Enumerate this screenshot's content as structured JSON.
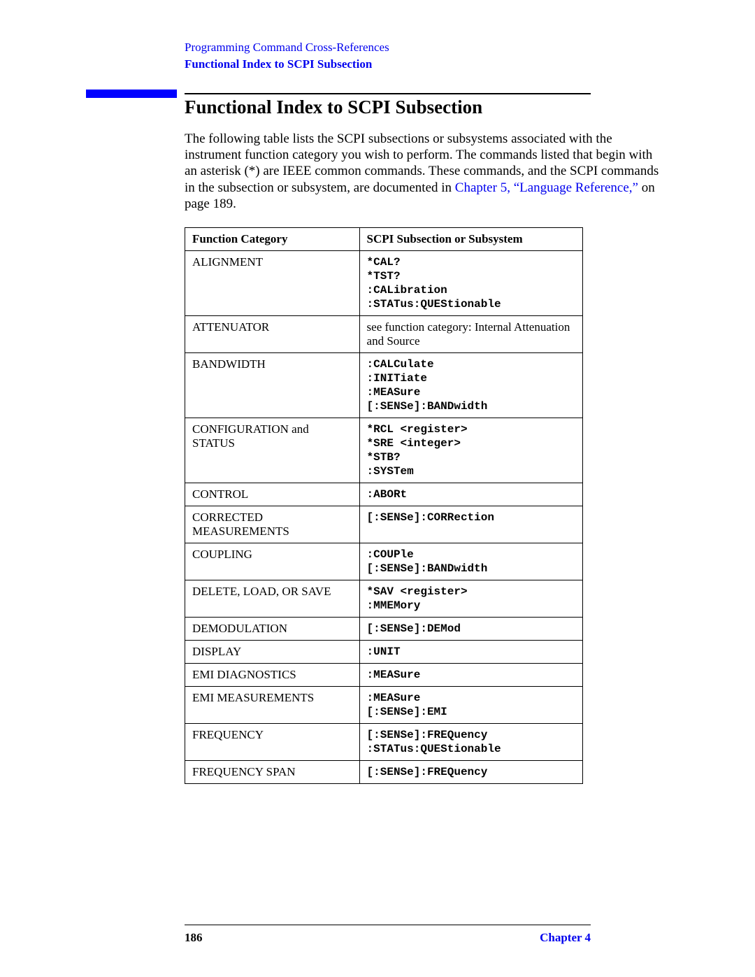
{
  "header": {
    "chapter_title": "Programming Command Cross-References",
    "section_title": "Functional Index to SCPI Subsection"
  },
  "heading": "Functional Index to SCPI Subsection",
  "intro": {
    "text_before_link": "The following table lists the SCPI subsections or subsystems associated with the instrument function category you wish to perform. The commands listed that begin with an asterisk (*) are IEEE common commands. These commands, and the SCPI commands in the subsection or subsystem, are documented in ",
    "link_text": "Chapter 5, “Language Reference,”",
    "text_after_link": " on page 189."
  },
  "table": {
    "columns": [
      "Function Category",
      "SCPI Subsection or Subsystem"
    ],
    "rows": [
      {
        "category": "ALIGNMENT",
        "scpi_mono": "*CAL?\n*TST?\n:CALibration\n:STATus:QUEStionable",
        "scpi_plain": ""
      },
      {
        "category": "ATTENUATOR",
        "scpi_mono": "",
        "scpi_plain": "see function category: Internal Attenuation and Source"
      },
      {
        "category": "BANDWIDTH",
        "scpi_mono": ":CALCulate\n:INITiate\n:MEASure\n[:SENSe]:BANDwidth",
        "scpi_plain": ""
      },
      {
        "category": "CONFIGURATION and STATUS",
        "scpi_mono": "*RCL <register>\n*SRE <integer>\n*STB?\n:SYSTem",
        "scpi_plain": ""
      },
      {
        "category": "CONTROL",
        "scpi_mono": ":ABORt",
        "scpi_plain": ""
      },
      {
        "category": "CORRECTED MEASUREMENTS",
        "scpi_mono": "[:SENSe]:CORRection",
        "scpi_plain": ""
      },
      {
        "category": "COUPLING",
        "scpi_mono": ":COUPle\n[:SENSe]:BANDwidth",
        "scpi_plain": ""
      },
      {
        "category": "DELETE, LOAD, OR SAVE",
        "scpi_mono": "*SAV <register>\n:MMEMory",
        "scpi_plain": ""
      },
      {
        "category": "DEMODULATION",
        "scpi_mono": "[:SENSe]:DEMod",
        "scpi_plain": ""
      },
      {
        "category": "DISPLAY",
        "scpi_mono": ":UNIT",
        "scpi_plain": ""
      },
      {
        "category": "EMI DIAGNOSTICS",
        "scpi_mono": ":MEASure",
        "scpi_plain": ""
      },
      {
        "category": "EMI MEASUREMENTS",
        "scpi_mono": ":MEASure\n[:SENSe]:EMI",
        "scpi_plain": ""
      },
      {
        "category": "FREQUENCY",
        "scpi_mono": "[:SENSe]:FREQuency\n:STATus:QUEStionable",
        "scpi_plain": ""
      },
      {
        "category": "FREQUENCY SPAN",
        "scpi_mono": "[:SENSe]:FREQuency",
        "scpi_plain": ""
      }
    ]
  },
  "footer": {
    "page_number": "186",
    "chapter_label": "Chapter 4"
  },
  "colors": {
    "link_color": "#0000ee",
    "bar_color": "#0000ff",
    "text_color": "#000000",
    "background": "#ffffff"
  }
}
